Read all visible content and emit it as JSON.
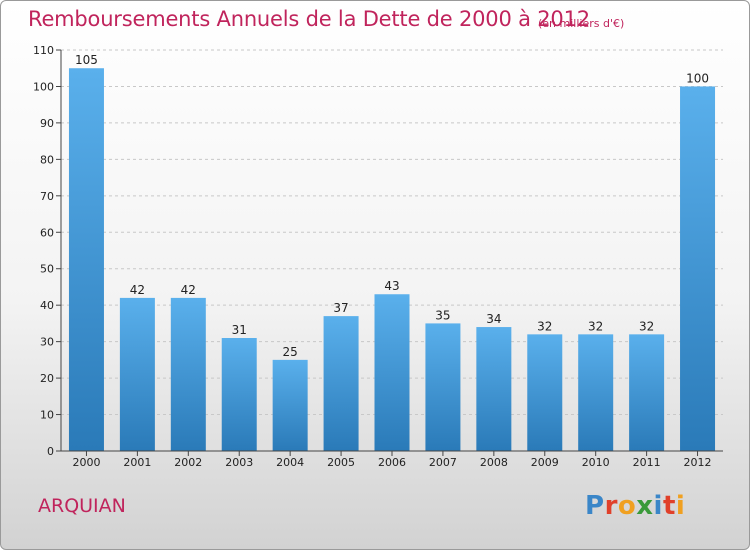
{
  "header": {
    "title": "Remboursements Annuels de la Dette de 2000 à 2012",
    "subtitle": "(en milliers d'€)"
  },
  "footer": {
    "commune": "ARQUIAN",
    "logo_letters": [
      "P",
      "r",
      "o",
      "x",
      "i",
      "t",
      "i"
    ],
    "logo_colors": [
      "#3a86c8",
      "#e0402a",
      "#f0a020",
      "#3a9a3a",
      "#3a86c8",
      "#e0402a",
      "#f0a020"
    ]
  },
  "colors": {
    "bar_light": "#5ab0ec",
    "bar_dark": "#2a7ab8",
    "title": "#c0245c"
  },
  "chart_data": {
    "type": "bar",
    "categories": [
      "2000",
      "2001",
      "2002",
      "2003",
      "2004",
      "2005",
      "2006",
      "2007",
      "2008",
      "2009",
      "2010",
      "2011",
      "2012"
    ],
    "values": [
      105,
      42,
      42,
      31,
      25,
      37,
      43,
      35,
      34,
      32,
      32,
      32,
      100
    ],
    "ylim": [
      0,
      110
    ],
    "yticks": [
      0,
      10,
      20,
      30,
      40,
      50,
      60,
      70,
      80,
      90,
      100,
      110
    ],
    "grid": true
  }
}
